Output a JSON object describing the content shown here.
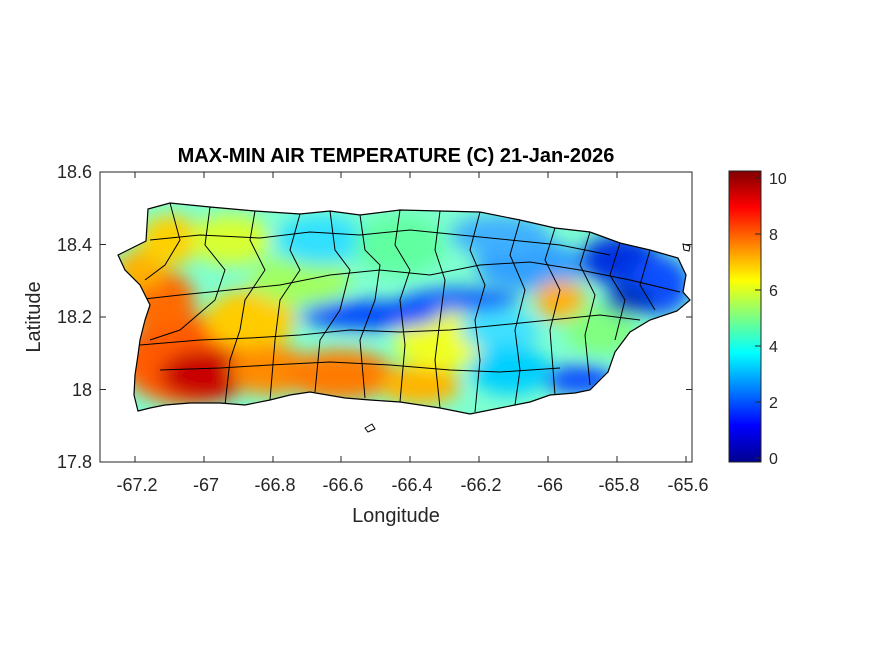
{
  "chart_data": {
    "type": "heatmap",
    "title": "MAX-MIN AIR TEMPERATURE (C) 21-Jan-2026",
    "xlabel": "Longitude",
    "ylabel": "Latitude",
    "xlim": [
      -67.3,
      -65.58
    ],
    "ylim": [
      17.8,
      18.6
    ],
    "xticks": [
      "-67.2",
      "-67",
      "-66.8",
      "-66.6",
      "-66.4",
      "-66.2",
      "-66",
      "-65.8",
      "-65.6"
    ],
    "yticks": [
      "18.6",
      "18.4",
      "18.2",
      "18",
      "17.8"
    ],
    "colorbar": {
      "colormap": "jet",
      "min": 0,
      "max": 10.3,
      "ticks": [
        "10",
        "8",
        "6",
        "4",
        "2",
        "0"
      ]
    },
    "hotspots": [
      {
        "lon": -66.95,
        "lat": 18.03,
        "value": 10.0
      },
      {
        "lon": -67.15,
        "lat": 18.22,
        "value": 8.6
      },
      {
        "lon": -66.55,
        "lat": 18.02,
        "value": 8.0
      },
      {
        "lon": -66.0,
        "lat": 18.24,
        "value": 7.6
      },
      {
        "lon": -66.45,
        "lat": 18.2,
        "value": 1.5
      },
      {
        "lon": -65.8,
        "lat": 18.35,
        "value": 1.2
      },
      {
        "lon": -66.1,
        "lat": 18.08,
        "value": 2.6
      }
    ]
  }
}
